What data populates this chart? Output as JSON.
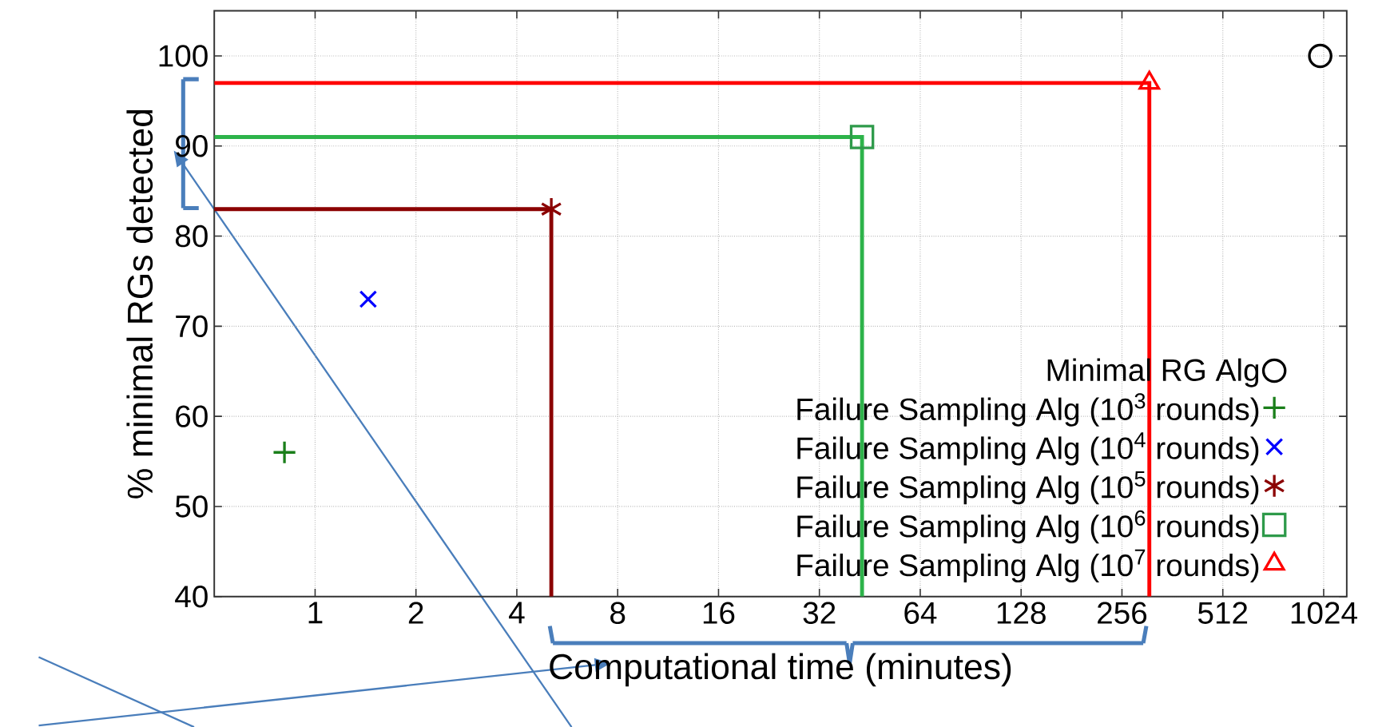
{
  "chart_data": {
    "type": "scatter",
    "log": "x",
    "xlabel": "Computational time (minutes)",
    "ylabel": "% minimal RGs detected",
    "xlim": [
      0.5,
      1200
    ],
    "xticks": [
      1,
      2,
      4,
      8,
      16,
      32,
      64,
      128,
      256,
      512,
      1024
    ],
    "ylim": [
      40,
      105
    ],
    "yticks": [
      40,
      50,
      60,
      70,
      80,
      90,
      100
    ],
    "grid": true,
    "legend": "bottom right",
    "series": [
      {
        "name": "Minimal RG Alg",
        "color": "#000000",
        "marker": "circle",
        "x": [
          1000
        ],
        "values": [
          100
        ]
      },
      {
        "name": "Failure Sampling Alg (10$^{3}$ rounds)",
        "color": "#1a7f1a",
        "marker": "plus",
        "x": [
          0.81
        ],
        "values": [
          56
        ]
      },
      {
        "name": "Failure Sampling Alg (10$^{4}$ rounds)",
        "color": "#0000ff",
        "marker": "cross",
        "x": [
          1.44
        ],
        "values": [
          73
        ]
      },
      {
        "name": "Failure Sampling Alg (10$^{5}$ rounds)",
        "color": "#8b0000",
        "x": [
          5.07
        ],
        "values": [
          83
        ]
      },
      {
        "name": "Failure Sampling Alg (10$^{6}$ rounds)",
        "color": "#2e9a4a",
        "marker": "square",
        "x": [
          42.9
        ],
        "values": [
          91
        ]
      },
      {
        "name": "Failure Sampling Alg (10$^{7}$ rounds)",
        "color": "#ff0000",
        "marker": "triangle",
        "x": [
          309
        ],
        "values": [
          97
        ]
      },
      {
        "type": "line",
        "color": "#8b0000",
        "x": [
          0.5,
          5.07,
          5.07
        ],
        "values": [
          83,
          83,
          40
        ]
      },
      {
        "type": "line",
        "color": "#2db34a",
        "x": [
          0.5,
          42.9,
          42.9
        ],
        "values": [
          91,
          91,
          40
        ]
      },
      {
        "type": "line",
        "color": "#ff0000",
        "x": [
          0.5,
          309,
          309
        ],
        "values": [
          97,
          97,
          40
        ]
      }
    ]
  }
}
